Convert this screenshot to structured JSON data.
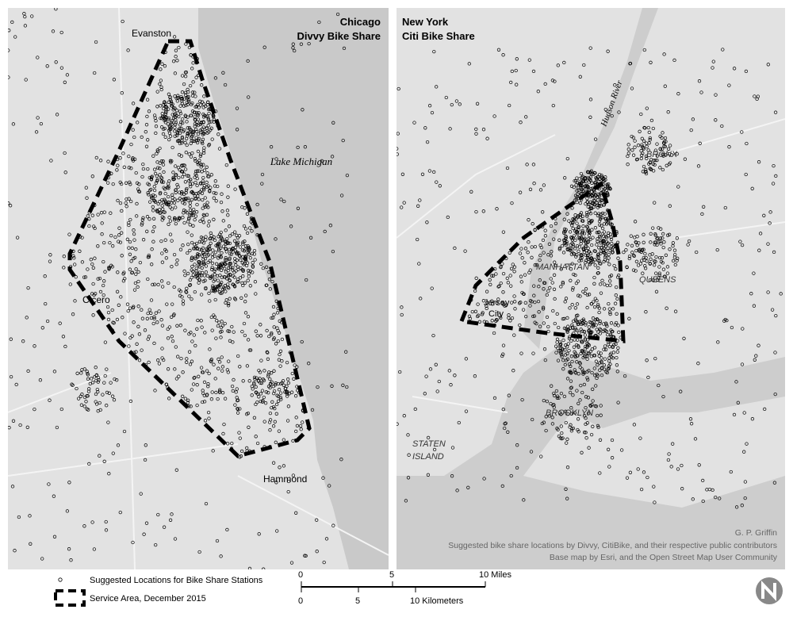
{
  "panels": [
    {
      "title": [
        "Chicago",
        "Divvy Bike Share"
      ],
      "places": [
        "Evanston",
        "Lake Michigan",
        "Cicero",
        "Hammond"
      ]
    },
    {
      "title": [
        "New York",
        "Citi Bike Share"
      ],
      "places": [
        "Hudson River",
        "BRONX",
        "MANHATTAN",
        "QUEENS",
        "Jersey",
        "City",
        "BROOKLYN",
        "STATEN",
        "ISLAND"
      ],
      "credits": [
        "G. P. Griffin",
        "Suggested bike share locations by Divvy, CitiBike, and their respective public contributors",
        "Base map by Esri, and the Open Street Map User Community"
      ]
    }
  ],
  "legend": [
    "Suggested Locations for Bike Share Stations",
    "Service Area, December 2015"
  ],
  "scale_bar": {
    "miles": [
      "0",
      "5",
      "10 Miles"
    ],
    "kilometers": [
      "0",
      "5",
      "10 Kilometers"
    ]
  }
}
